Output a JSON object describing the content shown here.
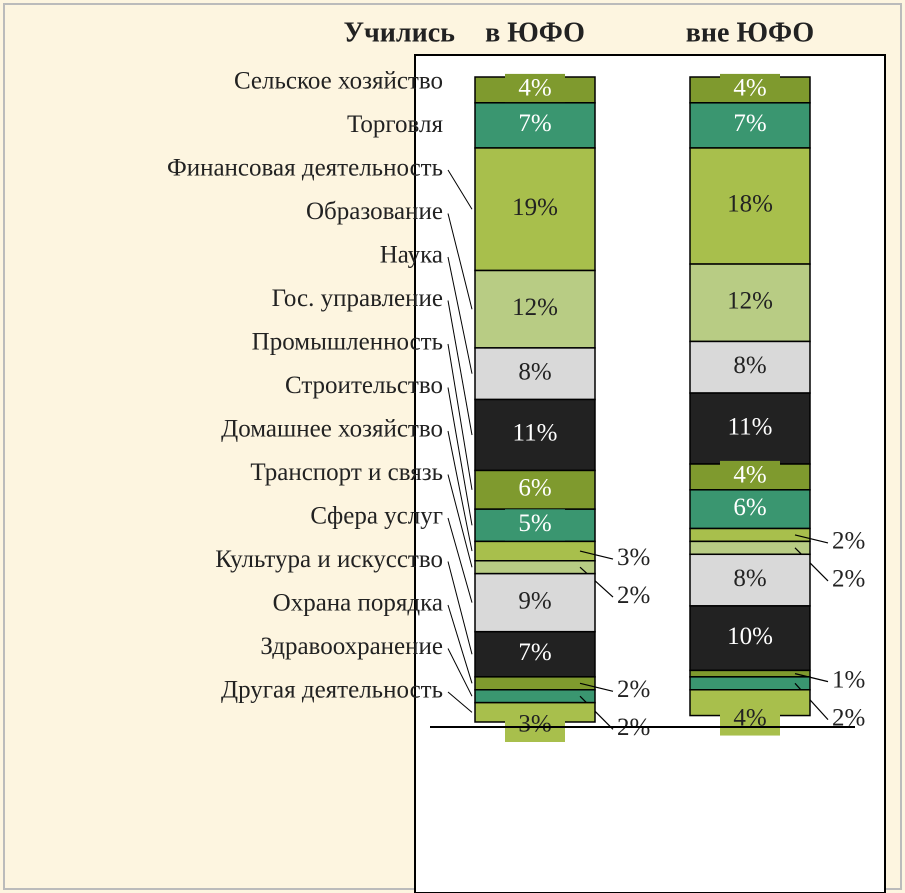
{
  "chart_data": {
    "type": "bar",
    "stacked": true,
    "header": "Учились",
    "categories": [
      "в ЮФО",
      "вне ЮФО"
    ],
    "series": [
      {
        "name": "Сельское хозяйство",
        "color": "#7f9a2e",
        "values": [
          4,
          4
        ],
        "value_labels": [
          "4%",
          "4%"
        ]
      },
      {
        "name": "Торговля",
        "color": "#3a9670",
        "values": [
          7,
          7
        ],
        "value_labels": [
          "7%",
          "7%"
        ]
      },
      {
        "name": "Финансовая деятельность",
        "color": "#a8bf4c",
        "values": [
          19,
          18
        ],
        "value_labels": [
          "19%",
          "18%"
        ]
      },
      {
        "name": "Образование",
        "color": "#b8cc84",
        "values": [
          12,
          12
        ],
        "value_labels": [
          "12%",
          "12%"
        ]
      },
      {
        "name": "Наука",
        "color": "#d9d9d9",
        "values": [
          8,
          8
        ],
        "value_labels": [
          "8%",
          "8%"
        ]
      },
      {
        "name": "Гос. управление",
        "color": "#222222",
        "values": [
          11,
          11
        ],
        "value_labels": [
          "11%",
          "11%"
        ]
      },
      {
        "name": "Промышленность",
        "color": "#7f9a2e",
        "values": [
          6,
          4
        ],
        "value_labels": [
          "6%",
          "4%"
        ]
      },
      {
        "name": "Строительство",
        "color": "#3a9670",
        "values": [
          5,
          6
        ],
        "value_labels": [
          "5%",
          "6%"
        ]
      },
      {
        "name": "Домашнее хозяйство",
        "color": "#a8bf4c",
        "values": [
          3,
          2
        ],
        "value_labels": [
          "3%",
          "2%"
        ]
      },
      {
        "name": "Транспорт и связь",
        "color": "#b8cc84",
        "values": [
          2,
          2
        ],
        "value_labels": [
          "2%",
          "2%"
        ]
      },
      {
        "name": "Сфера услуг",
        "color": "#d9d9d9",
        "values": [
          9,
          8
        ],
        "value_labels": [
          "9%",
          "8%"
        ]
      },
      {
        "name": "Культура и искусство",
        "color": "#222222",
        "values": [
          7,
          10
        ],
        "value_labels": [
          "7%",
          "10%"
        ]
      },
      {
        "name": "Охрана порядка",
        "color": "#7f9a2e",
        "values": [
          2,
          1
        ],
        "value_labels": [
          "2%",
          "1%"
        ]
      },
      {
        "name": "Здравоохранение",
        "color": "#3a9670",
        "values": [
          2,
          2
        ],
        "value_labels": [
          "2%",
          "2%"
        ]
      },
      {
        "name": "Другая деятельность",
        "color": "#a8bf4c",
        "values": [
          3,
          4
        ],
        "value_labels": [
          "3%",
          "4%"
        ]
      }
    ]
  }
}
